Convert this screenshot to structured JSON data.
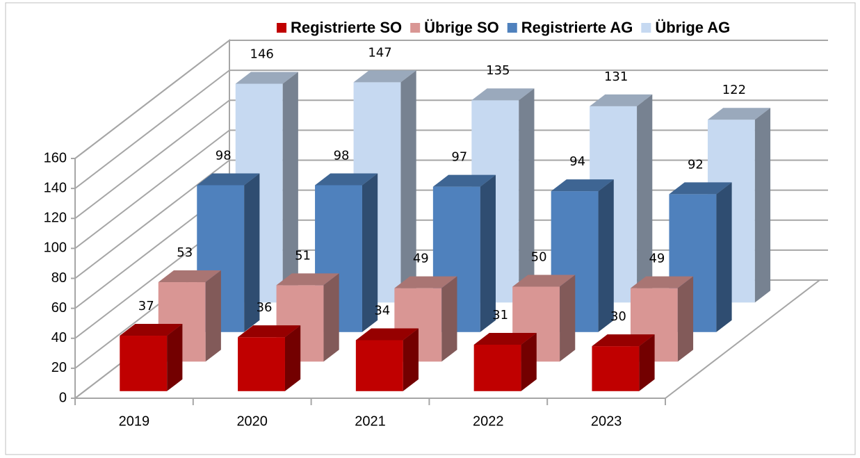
{
  "chart_data": {
    "type": "bar3d",
    "categories": [
      "2019",
      "2020",
      "2021",
      "2022",
      "2023"
    ],
    "series": [
      {
        "name": "Registrierte SO",
        "color": "#c00000",
        "values": [
          37,
          36,
          34,
          31,
          30
        ]
      },
      {
        "name": "Übrige SO",
        "color": "#d99694",
        "values": [
          53,
          51,
          49,
          50,
          49
        ]
      },
      {
        "name": "Registrierte AG",
        "color": "#4f81bd",
        "values": [
          98,
          98,
          97,
          94,
          92
        ]
      },
      {
        "name": "Übrige AG",
        "color": "#c6d9f1",
        "values": [
          146,
          147,
          135,
          131,
          122
        ]
      }
    ],
    "ylim": [
      0,
      160
    ],
    "yticks": [
      0,
      20,
      40,
      60,
      80,
      100,
      120,
      140,
      160
    ],
    "grid": true,
    "legend": "top"
  }
}
